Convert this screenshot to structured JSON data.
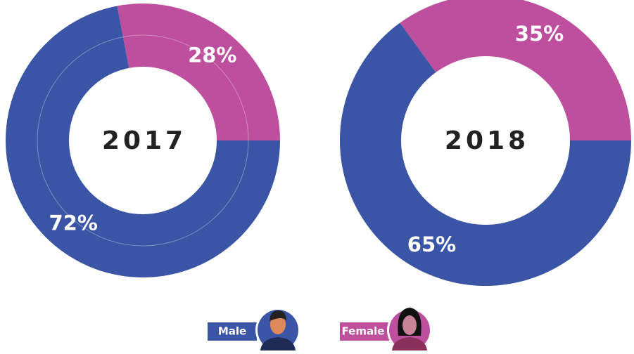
{
  "chart_data": [
    {
      "type": "donut",
      "center_label": "2017",
      "categories": [
        "Female",
        "Male"
      ],
      "values": [
        28,
        72
      ],
      "value_labels": [
        "28%",
        "72%"
      ],
      "colors": [
        "#bd4f9e",
        "#3a55a6"
      ]
    },
    {
      "type": "donut",
      "center_label": "2018",
      "categories": [
        "Female",
        "Male"
      ],
      "values": [
        35,
        65
      ],
      "value_labels": [
        "35%",
        "65%"
      ],
      "colors": [
        "#bd4f9e",
        "#3a55a6"
      ]
    }
  ]
}
